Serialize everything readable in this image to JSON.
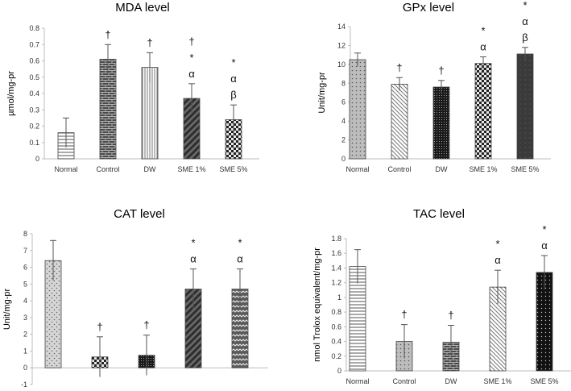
{
  "chart_data": [
    {
      "type": "bar",
      "title": "MDA level",
      "ylabel": "µmol/mg-pr",
      "xlabel": "",
      "categories": [
        "Normal",
        "Control",
        "DW",
        "SME 1%",
        "SME 5%"
      ],
      "values": [
        0.16,
        0.61,
        0.56,
        0.37,
        0.24
      ],
      "errors": [
        0.09,
        0.09,
        0.09,
        0.09,
        0.09
      ],
      "ylim": [
        0,
        0.8
      ],
      "yticks": [
        "0",
        "0.1",
        "0.2",
        "0.3",
        "0.4",
        "0.5",
        "0.6",
        "0.7",
        "0.8"
      ],
      "annotations": [
        [],
        [
          "†"
        ],
        [
          "†"
        ],
        [
          "†",
          "*",
          "α"
        ],
        [
          "*",
          "α",
          "β"
        ]
      ],
      "patterns": [
        "hlines",
        "brick",
        "vlines",
        "diagthick",
        "checker"
      ],
      "grid": false
    },
    {
      "type": "bar",
      "title": "GPx level",
      "ylabel": "Unit/mg-pr",
      "xlabel": "",
      "categories": [
        "Normal",
        "Control",
        "DW",
        "SME 1%",
        "SME 5%"
      ],
      "values": [
        10.5,
        7.9,
        7.6,
        10.1,
        11.1
      ],
      "errors": [
        0.7,
        0.7,
        0.7,
        0.7,
        0.7
      ],
      "ylim": [
        0,
        14
      ],
      "yticks": [
        "0",
        "2",
        "4",
        "6",
        "8",
        "10",
        "12",
        "14"
      ],
      "annotations": [
        [],
        [
          "†"
        ],
        [
          "†"
        ],
        [
          "*",
          "α"
        ],
        [
          "*",
          "α",
          "β"
        ]
      ],
      "patterns": [
        "dots",
        "diagthin",
        "dense",
        "checker",
        "dark"
      ],
      "grid": false
    },
    {
      "type": "bar",
      "title": "CAT level",
      "ylabel": "Unit/mg-pr",
      "xlabel": "",
      "categories": [
        "Normal",
        "Control",
        "DW",
        "SME 1%",
        "SME 5%"
      ],
      "values": [
        6.4,
        0.65,
        0.75,
        4.7,
        4.7
      ],
      "errors": [
        1.2,
        1.2,
        1.2,
        1.2,
        1.2
      ],
      "ylim": [
        -1,
        8
      ],
      "yticks": [
        "-1",
        "0",
        "1",
        "2",
        "3",
        "4",
        "5",
        "6",
        "7",
        "8"
      ],
      "annotations": [
        [],
        [
          "†"
        ],
        [
          "†"
        ],
        [
          "*",
          "α"
        ],
        [
          "*",
          "α"
        ]
      ],
      "patterns": [
        "crossdots",
        "checker",
        "dense",
        "diagthick",
        "zigzag"
      ],
      "grid": false
    },
    {
      "type": "bar",
      "title": "TAC level",
      "ylabel": "nmol Trolox equivalent/mg-pr",
      "xlabel": "",
      "categories": [
        "Normal",
        "Control",
        "DW",
        "SME 1%",
        "SME 5%"
      ],
      "values": [
        1.42,
        0.4,
        0.39,
        1.14,
        1.34
      ],
      "errors": [
        0.23,
        0.23,
        0.23,
        0.23,
        0.23
      ],
      "ylim": [
        0,
        1.8
      ],
      "yticks": [
        "0",
        "0.2",
        "0.4",
        "0.6",
        "0.8",
        "1",
        "1.2",
        "1.4",
        "1.6",
        "1.8"
      ],
      "annotations": [
        [],
        [
          "†"
        ],
        [
          "†"
        ],
        [
          "*",
          "α"
        ],
        [
          "*",
          "α"
        ]
      ],
      "patterns": [
        "hlines",
        "dots",
        "brick",
        "diagthin",
        "darkdots"
      ],
      "grid": false
    }
  ]
}
